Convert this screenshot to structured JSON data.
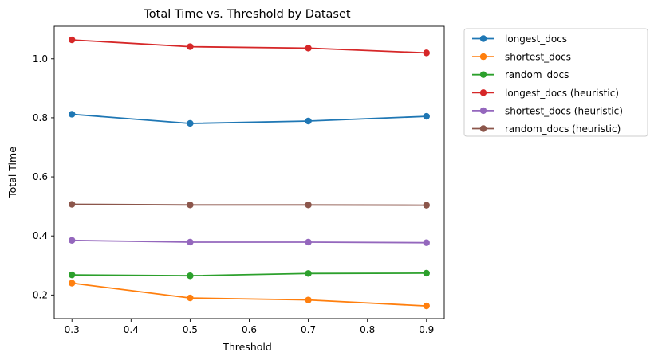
{
  "chart_data": {
    "type": "line",
    "title": "Total Time vs. Threshold by Dataset",
    "xlabel": "Threshold",
    "ylabel": "Total Time",
    "x": [
      0.3,
      0.5,
      0.7,
      0.9
    ],
    "xlim": [
      0.27,
      0.93
    ],
    "ylim": [
      0.12,
      1.11
    ],
    "xticks": [
      0.3,
      0.4,
      0.5,
      0.6,
      0.7,
      0.8,
      0.9
    ],
    "xtick_labels": [
      "0.3",
      "0.4",
      "0.5",
      "0.6",
      "0.7",
      "0.8",
      "0.9"
    ],
    "yticks": [
      0.2,
      0.4,
      0.6,
      0.8,
      1.0
    ],
    "ytick_labels": [
      "0.2",
      "0.4",
      "0.6",
      "0.8",
      "1.0"
    ],
    "grid": false,
    "legend_position": "outside upper right",
    "series": [
      {
        "name": "longest_docs",
        "color": "#1f77b4",
        "values": [
          0.812,
          0.781,
          0.789,
          0.805
        ]
      },
      {
        "name": "shortest_docs",
        "color": "#ff7f0e",
        "values": [
          0.24,
          0.19,
          0.183,
          0.163
        ]
      },
      {
        "name": "random_docs",
        "color": "#2ca02c",
        "values": [
          0.268,
          0.265,
          0.273,
          0.274
        ]
      },
      {
        "name": "longest_docs (heuristic)",
        "color": "#d62728",
        "values": [
          1.064,
          1.041,
          1.036,
          1.02
        ]
      },
      {
        "name": "shortest_docs (heuristic)",
        "color": "#9467bd",
        "values": [
          0.385,
          0.379,
          0.379,
          0.377
        ]
      },
      {
        "name": "random_docs (heuristic)",
        "color": "#8c564b",
        "values": [
          0.507,
          0.505,
          0.505,
          0.504
        ]
      }
    ]
  }
}
